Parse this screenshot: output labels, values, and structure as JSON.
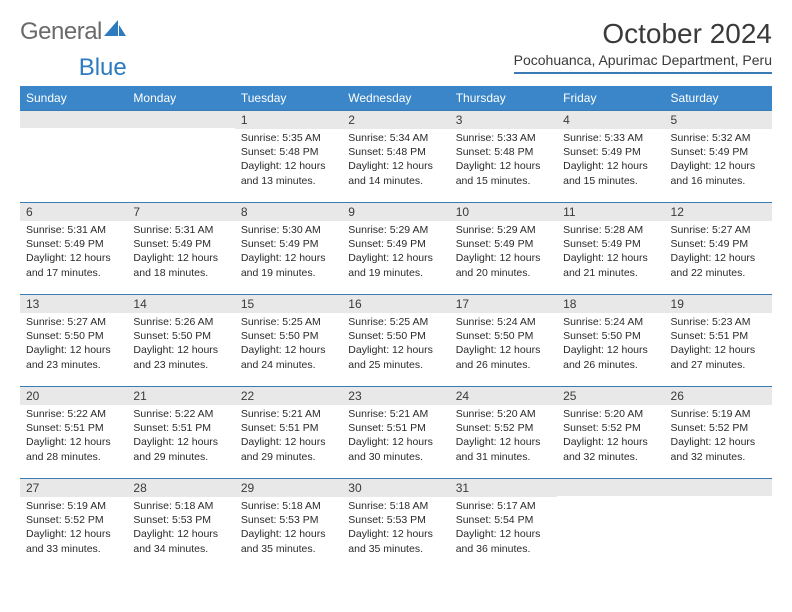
{
  "brand": {
    "part1": "General",
    "part2": "Blue"
  },
  "title": "October 2024",
  "location": "Pocohuanca, Apurimac Department, Peru",
  "columns": [
    "Sunday",
    "Monday",
    "Tuesday",
    "Wednesday",
    "Thursday",
    "Friday",
    "Saturday"
  ],
  "colors": {
    "header_bg": "#3a86c8",
    "header_text": "#ffffff",
    "daynum_bg": "#e8e8e8",
    "border": "#3a7ab5",
    "text": "#2a2a2a"
  },
  "weeks": [
    [
      {
        "empty": true
      },
      {
        "empty": true
      },
      {
        "num": "1",
        "sunrise": "Sunrise: 5:35 AM",
        "sunset": "Sunset: 5:48 PM",
        "daylight": "Daylight: 12 hours and 13 minutes."
      },
      {
        "num": "2",
        "sunrise": "Sunrise: 5:34 AM",
        "sunset": "Sunset: 5:48 PM",
        "daylight": "Daylight: 12 hours and 14 minutes."
      },
      {
        "num": "3",
        "sunrise": "Sunrise: 5:33 AM",
        "sunset": "Sunset: 5:48 PM",
        "daylight": "Daylight: 12 hours and 15 minutes."
      },
      {
        "num": "4",
        "sunrise": "Sunrise: 5:33 AM",
        "sunset": "Sunset: 5:49 PM",
        "daylight": "Daylight: 12 hours and 15 minutes."
      },
      {
        "num": "5",
        "sunrise": "Sunrise: 5:32 AM",
        "sunset": "Sunset: 5:49 PM",
        "daylight": "Daylight: 12 hours and 16 minutes."
      }
    ],
    [
      {
        "num": "6",
        "sunrise": "Sunrise: 5:31 AM",
        "sunset": "Sunset: 5:49 PM",
        "daylight": "Daylight: 12 hours and 17 minutes."
      },
      {
        "num": "7",
        "sunrise": "Sunrise: 5:31 AM",
        "sunset": "Sunset: 5:49 PM",
        "daylight": "Daylight: 12 hours and 18 minutes."
      },
      {
        "num": "8",
        "sunrise": "Sunrise: 5:30 AM",
        "sunset": "Sunset: 5:49 PM",
        "daylight": "Daylight: 12 hours and 19 minutes."
      },
      {
        "num": "9",
        "sunrise": "Sunrise: 5:29 AM",
        "sunset": "Sunset: 5:49 PM",
        "daylight": "Daylight: 12 hours and 19 minutes."
      },
      {
        "num": "10",
        "sunrise": "Sunrise: 5:29 AM",
        "sunset": "Sunset: 5:49 PM",
        "daylight": "Daylight: 12 hours and 20 minutes."
      },
      {
        "num": "11",
        "sunrise": "Sunrise: 5:28 AM",
        "sunset": "Sunset: 5:49 PM",
        "daylight": "Daylight: 12 hours and 21 minutes."
      },
      {
        "num": "12",
        "sunrise": "Sunrise: 5:27 AM",
        "sunset": "Sunset: 5:49 PM",
        "daylight": "Daylight: 12 hours and 22 minutes."
      }
    ],
    [
      {
        "num": "13",
        "sunrise": "Sunrise: 5:27 AM",
        "sunset": "Sunset: 5:50 PM",
        "daylight": "Daylight: 12 hours and 23 minutes."
      },
      {
        "num": "14",
        "sunrise": "Sunrise: 5:26 AM",
        "sunset": "Sunset: 5:50 PM",
        "daylight": "Daylight: 12 hours and 23 minutes."
      },
      {
        "num": "15",
        "sunrise": "Sunrise: 5:25 AM",
        "sunset": "Sunset: 5:50 PM",
        "daylight": "Daylight: 12 hours and 24 minutes."
      },
      {
        "num": "16",
        "sunrise": "Sunrise: 5:25 AM",
        "sunset": "Sunset: 5:50 PM",
        "daylight": "Daylight: 12 hours and 25 minutes."
      },
      {
        "num": "17",
        "sunrise": "Sunrise: 5:24 AM",
        "sunset": "Sunset: 5:50 PM",
        "daylight": "Daylight: 12 hours and 26 minutes."
      },
      {
        "num": "18",
        "sunrise": "Sunrise: 5:24 AM",
        "sunset": "Sunset: 5:50 PM",
        "daylight": "Daylight: 12 hours and 26 minutes."
      },
      {
        "num": "19",
        "sunrise": "Sunrise: 5:23 AM",
        "sunset": "Sunset: 5:51 PM",
        "daylight": "Daylight: 12 hours and 27 minutes."
      }
    ],
    [
      {
        "num": "20",
        "sunrise": "Sunrise: 5:22 AM",
        "sunset": "Sunset: 5:51 PM",
        "daylight": "Daylight: 12 hours and 28 minutes."
      },
      {
        "num": "21",
        "sunrise": "Sunrise: 5:22 AM",
        "sunset": "Sunset: 5:51 PM",
        "daylight": "Daylight: 12 hours and 29 minutes."
      },
      {
        "num": "22",
        "sunrise": "Sunrise: 5:21 AM",
        "sunset": "Sunset: 5:51 PM",
        "daylight": "Daylight: 12 hours and 29 minutes."
      },
      {
        "num": "23",
        "sunrise": "Sunrise: 5:21 AM",
        "sunset": "Sunset: 5:51 PM",
        "daylight": "Daylight: 12 hours and 30 minutes."
      },
      {
        "num": "24",
        "sunrise": "Sunrise: 5:20 AM",
        "sunset": "Sunset: 5:52 PM",
        "daylight": "Daylight: 12 hours and 31 minutes."
      },
      {
        "num": "25",
        "sunrise": "Sunrise: 5:20 AM",
        "sunset": "Sunset: 5:52 PM",
        "daylight": "Daylight: 12 hours and 32 minutes."
      },
      {
        "num": "26",
        "sunrise": "Sunrise: 5:19 AM",
        "sunset": "Sunset: 5:52 PM",
        "daylight": "Daylight: 12 hours and 32 minutes."
      }
    ],
    [
      {
        "num": "27",
        "sunrise": "Sunrise: 5:19 AM",
        "sunset": "Sunset: 5:52 PM",
        "daylight": "Daylight: 12 hours and 33 minutes."
      },
      {
        "num": "28",
        "sunrise": "Sunrise: 5:18 AM",
        "sunset": "Sunset: 5:53 PM",
        "daylight": "Daylight: 12 hours and 34 minutes."
      },
      {
        "num": "29",
        "sunrise": "Sunrise: 5:18 AM",
        "sunset": "Sunset: 5:53 PM",
        "daylight": "Daylight: 12 hours and 35 minutes."
      },
      {
        "num": "30",
        "sunrise": "Sunrise: 5:18 AM",
        "sunset": "Sunset: 5:53 PM",
        "daylight": "Daylight: 12 hours and 35 minutes."
      },
      {
        "num": "31",
        "sunrise": "Sunrise: 5:17 AM",
        "sunset": "Sunset: 5:54 PM",
        "daylight": "Daylight: 12 hours and 36 minutes."
      },
      {
        "empty": true
      },
      {
        "empty": true
      }
    ]
  ]
}
